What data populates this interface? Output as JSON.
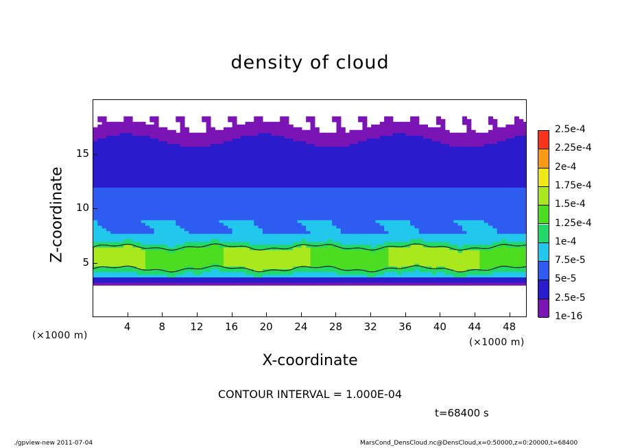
{
  "chart_data": {
    "type": "heatmap",
    "title": "density of cloud",
    "xlabel": "X-coordinate",
    "ylabel": "Z-coordinate",
    "x_unit": "(×1000 m)",
    "y_unit": "(×1000 m)",
    "xlim": [
      0,
      50
    ],
    "ylim": [
      0,
      20
    ],
    "x_ticks": [
      4,
      8,
      12,
      16,
      20,
      24,
      28,
      32,
      36,
      40,
      44,
      48
    ],
    "y_ticks": [
      5,
      10,
      15
    ],
    "colorbar": {
      "levels": [
        "1e-16",
        "2.5e-5",
        "5e-5",
        "7.5e-5",
        "1e-4",
        "1.25e-4",
        "1.5e-4",
        "1.75e-4",
        "2e-4",
        "2.25e-4",
        "2.5e-4"
      ],
      "colors": [
        "#7a14b4",
        "#2a1ccc",
        "#2f5cf0",
        "#22c8ec",
        "#22d868",
        "#4cdc20",
        "#a8e81c",
        "#f0e816",
        "#f89a14",
        "#f8341c"
      ]
    },
    "cloud_bands": {
      "lower_layer_z": [
        3,
        6.5
      ],
      "peak_values_near_z": 5.5,
      "upper_layer_z": [
        10,
        17.5
      ]
    }
  },
  "annotations": {
    "contour_interval": "CONTOUR INTERVAL = 1.000E-04",
    "time": "t=68400 s"
  },
  "footer": {
    "left": "./gpview-new  2011-07-04",
    "right": "MarsCond_DensCloud.nc@DensCloud,x=0:50000,z=0:20000,t=68400"
  }
}
